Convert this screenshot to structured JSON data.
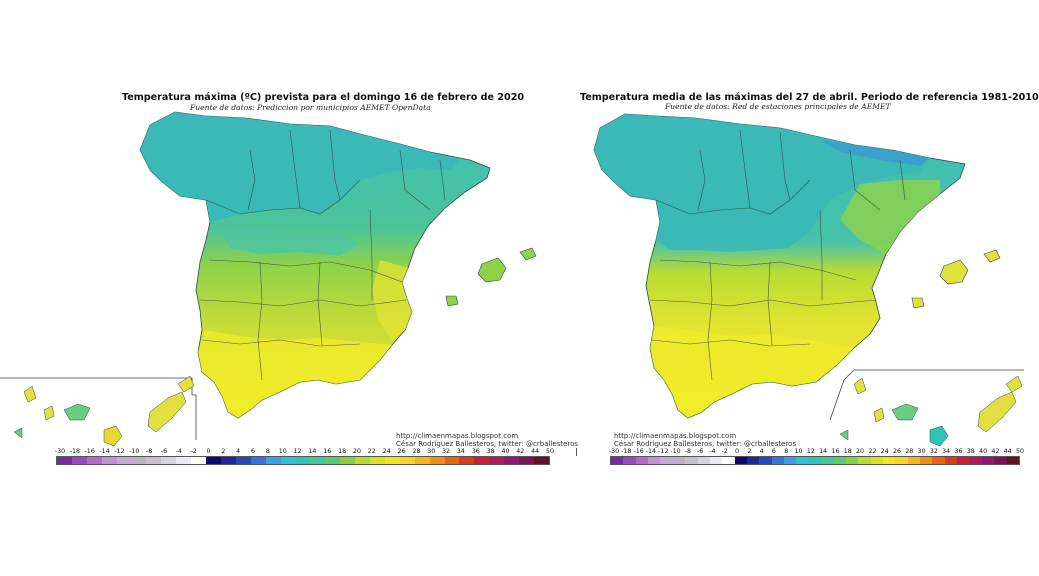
{
  "maps": [
    {
      "id": "left",
      "title": "Temperatura máxima (ºC) prevista para el domingo 16 de febrero de 2020",
      "subtitle": "Fuente de datos: Prediccion por municipios AEMET OpenData",
      "credit_line1": "http://climaenmapas.blogspot.com",
      "credit_line2": "César Rodríguez Ballesteros, twitter: @crballesteros"
    },
    {
      "id": "right",
      "title": "Temperatura media de las máximas del 27 de abril. Periodo de referencia 1981-2010",
      "subtitle": "Fuente de datos: Red de estaciones principales de AEMET",
      "credit_line1": "http://climaenmapas.blogspot.com",
      "credit_line2": "César Rodríguez Ballesteros, twitter: @crballesteros"
    }
  ],
  "scale": {
    "labels": [
      "-30",
      "-18",
      "-16",
      "-14",
      "-12",
      "-10",
      "-8",
      "-6",
      "-4",
      "-2",
      "0",
      "2",
      "4",
      "6",
      "8",
      "10",
      "12",
      "14",
      "16",
      "18",
      "20",
      "22",
      "24",
      "26",
      "28",
      "30",
      "32",
      "34",
      "36",
      "38",
      "40",
      "42",
      "44",
      "50"
    ],
    "colors": [
      "#7a2a9a",
      "#9a4ab4",
      "#b06cc6",
      "#c48fd4",
      "#c9a8d8",
      "#bfb0c8",
      "#c6c0cc",
      "#d8d4dc",
      "#ececf0",
      "#ffffff",
      "#0a0a6e",
      "#1a2a9c",
      "#2848c0",
      "#3a72d8",
      "#3aa0e0",
      "#30c0d8",
      "#30c4b8",
      "#40c89a",
      "#5cc870",
      "#88d040",
      "#b8dc30",
      "#dce020",
      "#f0e424",
      "#f6d424",
      "#f4b41e",
      "#f09018",
      "#e86414",
      "#d83c1c",
      "#c81e3a",
      "#b01a5c",
      "#901870",
      "#7a1458",
      "#641024"
    ]
  },
  "colors": {
    "cool": "#3cbfb4",
    "mid": "#8ed24a",
    "warm": "#dfe23a",
    "hot": "#f2ec2a",
    "blue": "#3a8ede",
    "border": "#2a3a3a"
  }
}
